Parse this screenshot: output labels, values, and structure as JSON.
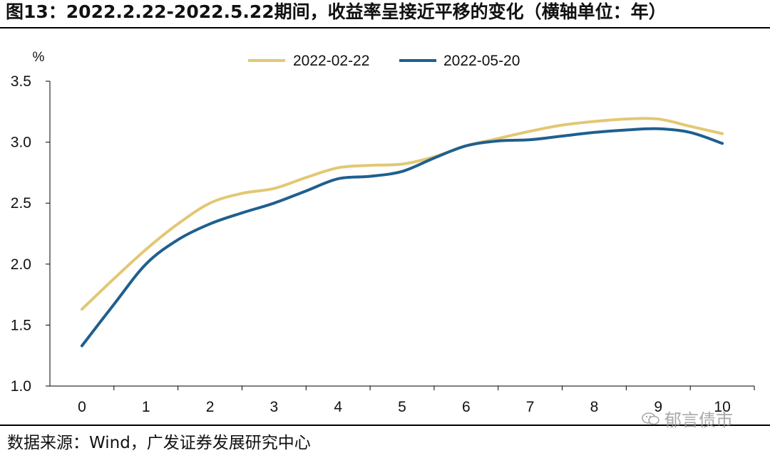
{
  "header": {
    "title": "图13：2022.2.22-2022.5.22期间，收益率呈接近平移的变化（横轴单位：年）"
  },
  "footer": {
    "source": "数据来源：Wind，广发证券发展研究中心",
    "watermark": "郁言债市"
  },
  "chart_data": {
    "type": "line",
    "ylabel": "%",
    "ylim": [
      1.0,
      3.5
    ],
    "yticks": [
      "1.0",
      "1.5",
      "2.0",
      "2.5",
      "3.0",
      "3.5"
    ],
    "x_tick_labels": [
      "0",
      "1",
      "2",
      "3",
      "4",
      "5",
      "6",
      "7",
      "8",
      "9",
      "10"
    ],
    "grid": false,
    "legend_position": "top",
    "series": [
      {
        "name": "2022-02-22",
        "color": "#E2C873",
        "x": [
          0,
          0.5,
          1,
          1.5,
          2,
          2.5,
          3,
          3.5,
          4,
          4.5,
          5,
          5.5,
          6,
          6.5,
          7,
          7.5,
          8,
          8.5,
          9,
          9.5,
          10
        ],
        "values": [
          1.63,
          1.88,
          2.12,
          2.33,
          2.5,
          2.58,
          2.62,
          2.71,
          2.79,
          2.81,
          2.82,
          2.88,
          2.97,
          3.03,
          3.09,
          3.14,
          3.17,
          3.19,
          3.19,
          3.13,
          3.07
        ]
      },
      {
        "name": "2022-05-20",
        "color": "#1F5F8F",
        "x": [
          0,
          0.5,
          1,
          1.5,
          2,
          2.5,
          3,
          3.5,
          4,
          4.5,
          5,
          5.5,
          6,
          6.5,
          7,
          7.5,
          8,
          8.5,
          9,
          9.5,
          10
        ],
        "values": [
          1.33,
          1.67,
          2.0,
          2.2,
          2.33,
          2.42,
          2.5,
          2.6,
          2.7,
          2.72,
          2.76,
          2.87,
          2.97,
          3.01,
          3.02,
          3.05,
          3.08,
          3.1,
          3.11,
          3.08,
          2.99
        ]
      }
    ]
  }
}
